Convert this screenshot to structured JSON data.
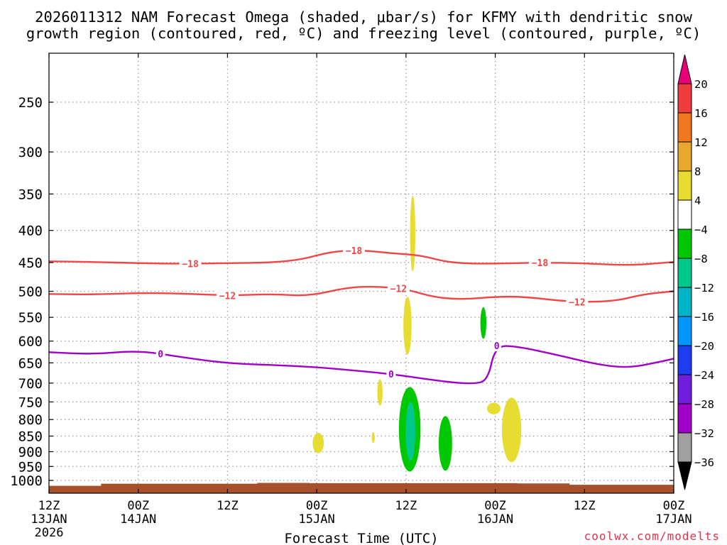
{
  "chart_data": {
    "type": "contour",
    "title_line1": "2026011312 NAM Forecast Omega (shaded, μbar/s) for KFMY with dendritic snow",
    "title_line2": "growth region (contoured, red, ºC) and freezing level (contoured, purple, ºC)",
    "xlabel": "Forecast Time (UTC)",
    "credit": "coolwx.com/modelts",
    "x_range_hours": [
      0,
      84
    ],
    "x_ticks": [
      {
        "hour": 0,
        "hh": "12Z",
        "day": "13JAN",
        "year": "2026"
      },
      {
        "hour": 12,
        "hh": "00Z",
        "day": "14JAN",
        "year": ""
      },
      {
        "hour": 24,
        "hh": "12Z",
        "day": "",
        "year": ""
      },
      {
        "hour": 36,
        "hh": "00Z",
        "day": "15JAN",
        "year": ""
      },
      {
        "hour": 48,
        "hh": "12Z",
        "day": "",
        "year": ""
      },
      {
        "hour": 60,
        "hh": "00Z",
        "day": "16JAN",
        "year": ""
      },
      {
        "hour": 72,
        "hh": "12Z",
        "day": "",
        "year": ""
      },
      {
        "hour": 84,
        "hh": "00Z",
        "day": "17JAN",
        "year": ""
      }
    ],
    "pressure_levels_hpa": [
      250,
      300,
      350,
      400,
      450,
      500,
      550,
      600,
      650,
      700,
      750,
      800,
      850,
      900,
      950,
      1000
    ],
    "y_tick_labels": [
      "250",
      "300",
      "350",
      "400",
      "450",
      "500",
      "550",
      "600",
      "650",
      "700",
      "750",
      "800",
      "850",
      "900",
      "950",
      "1000"
    ],
    "colorbar": {
      "labels": [
        "20",
        "16",
        "12",
        "8",
        "4",
        "−4",
        "−8",
        "−12",
        "−16",
        "−20",
        "−24",
        "−28",
        "−32",
        "−36"
      ],
      "colors": [
        "#e8007a",
        "#f03c3c",
        "#f07820",
        "#e8a830",
        "#e6dc32",
        "#ffffff",
        "#00c800",
        "#00c88c",
        "#00b4c8",
        "#0096ff",
        "#1e3cf0",
        "#6e1edc",
        "#a000c8",
        "#a0a0a0",
        "#000000"
      ]
    },
    "contours": [
      {
        "name": "-18",
        "label": "−18",
        "color": "#f04646",
        "points": [
          [
            0,
            448
          ],
          [
            6,
            449
          ],
          [
            12,
            451
          ],
          [
            18,
            452
          ],
          [
            24,
            451
          ],
          [
            30,
            450
          ],
          [
            34,
            445
          ],
          [
            38,
            432
          ],
          [
            42,
            430
          ],
          [
            46,
            435
          ],
          [
            50,
            438
          ],
          [
            54,
            451
          ],
          [
            60,
            452
          ],
          [
            66,
            450
          ],
          [
            72,
            451
          ],
          [
            78,
            455
          ],
          [
            84,
            449
          ]
        ],
        "label_hours": [
          19,
          41,
          66
        ]
      },
      {
        "name": "-12",
        "label": "−12",
        "color": "#f04646",
        "points": [
          [
            0,
            505
          ],
          [
            6,
            506
          ],
          [
            12,
            503
          ],
          [
            18,
            504
          ],
          [
            24,
            508
          ],
          [
            30,
            505
          ],
          [
            35,
            509
          ],
          [
            40,
            493
          ],
          [
            44,
            491
          ],
          [
            48,
            496
          ],
          [
            52,
            512
          ],
          [
            56,
            515
          ],
          [
            60,
            510
          ],
          [
            64,
            510
          ],
          [
            70,
            520
          ],
          [
            76,
            519
          ],
          [
            80,
            505
          ],
          [
            84,
            500
          ]
        ],
        "label_hours": [
          24,
          47,
          71
        ]
      },
      {
        "name": "0",
        "label": "0",
        "color": "#a000c8",
        "points": [
          [
            0,
            625
          ],
          [
            6,
            630
          ],
          [
            12,
            621
          ],
          [
            18,
            637
          ],
          [
            24,
            651
          ],
          [
            30,
            655
          ],
          [
            36,
            660
          ],
          [
            42,
            670
          ],
          [
            46,
            677
          ],
          [
            50,
            688
          ],
          [
            54,
            698
          ],
          [
            57,
            702
          ],
          [
            59,
            694
          ],
          [
            60,
            610
          ],
          [
            63,
            612
          ],
          [
            68,
            630
          ],
          [
            74,
            655
          ],
          [
            78,
            662
          ],
          [
            82,
            648
          ],
          [
            84,
            640
          ]
        ],
        "label_hours": [
          15,
          46,
          60.2
        ]
      }
    ],
    "shaded_regions": [
      {
        "name": "positive-omega-upper-1",
        "value": 4,
        "color": "#e6dc32",
        "hour": 48.9,
        "half_width_hours": 0.35,
        "top_hpa": 352,
        "bottom_hpa": 465
      },
      {
        "name": "positive-omega-upper-2",
        "value": 4,
        "color": "#e6dc32",
        "hour": 48.2,
        "half_width_hours": 0.55,
        "top_hpa": 510,
        "bottom_hpa": 630
      },
      {
        "name": "positive-omega-mid",
        "value": 4,
        "color": "#e6dc32",
        "hour": 44.5,
        "half_width_hours": 0.35,
        "top_hpa": 690,
        "bottom_hpa": 760
      },
      {
        "name": "negative-omega-mid",
        "value": -4,
        "color": "#00c800",
        "hour": 58.4,
        "half_width_hours": 0.4,
        "top_hpa": 530,
        "bottom_hpa": 595
      },
      {
        "name": "negative-omega-low-1",
        "value": -4,
        "color": "#00c800",
        "hour": 48.5,
        "half_width_hours": 1.45,
        "top_hpa": 710,
        "bottom_hpa": 968
      },
      {
        "name": "negative-omega-low-1-core",
        "value": -8,
        "color": "#00c88c",
        "hour": 48.6,
        "half_width_hours": 0.65,
        "top_hpa": 750,
        "bottom_hpa": 930
      },
      {
        "name": "negative-omega-low-2",
        "value": -4,
        "color": "#00c800",
        "hour": 53.3,
        "half_width_hours": 0.9,
        "top_hpa": 790,
        "bottom_hpa": 965
      },
      {
        "name": "positive-omega-low-1",
        "value": 4,
        "color": "#e6dc32",
        "hour": 36.2,
        "half_width_hours": 0.75,
        "top_hpa": 840,
        "bottom_hpa": 905
      },
      {
        "name": "positive-omega-low-2",
        "value": 4,
        "color": "#e6dc32",
        "hour": 43.6,
        "half_width_hours": 0.2,
        "top_hpa": 838,
        "bottom_hpa": 872
      },
      {
        "name": "positive-omega-low-3",
        "value": 4,
        "color": "#e6dc32",
        "hour": 62.2,
        "half_width_hours": 1.3,
        "top_hpa": 738,
        "bottom_hpa": 935
      },
      {
        "name": "positive-omega-low-4",
        "value": 4,
        "color": "#e6dc32",
        "hour": 59.8,
        "half_width_hours": 0.9,
        "top_hpa": 752,
        "bottom_hpa": 785
      }
    ],
    "ground_color": "#a8502c",
    "ground_top_hpa": [
      [
        0,
        1020
      ],
      [
        7,
        1012
      ],
      [
        14,
        1012
      ],
      [
        21,
        1012
      ],
      [
        28,
        1009
      ],
      [
        35,
        1010
      ],
      [
        42,
        1010
      ],
      [
        49,
        1010
      ],
      [
        56,
        1010
      ],
      [
        63,
        1011
      ],
      [
        70,
        1016
      ],
      [
        77,
        1016
      ],
      [
        84,
        1016
      ]
    ]
  }
}
